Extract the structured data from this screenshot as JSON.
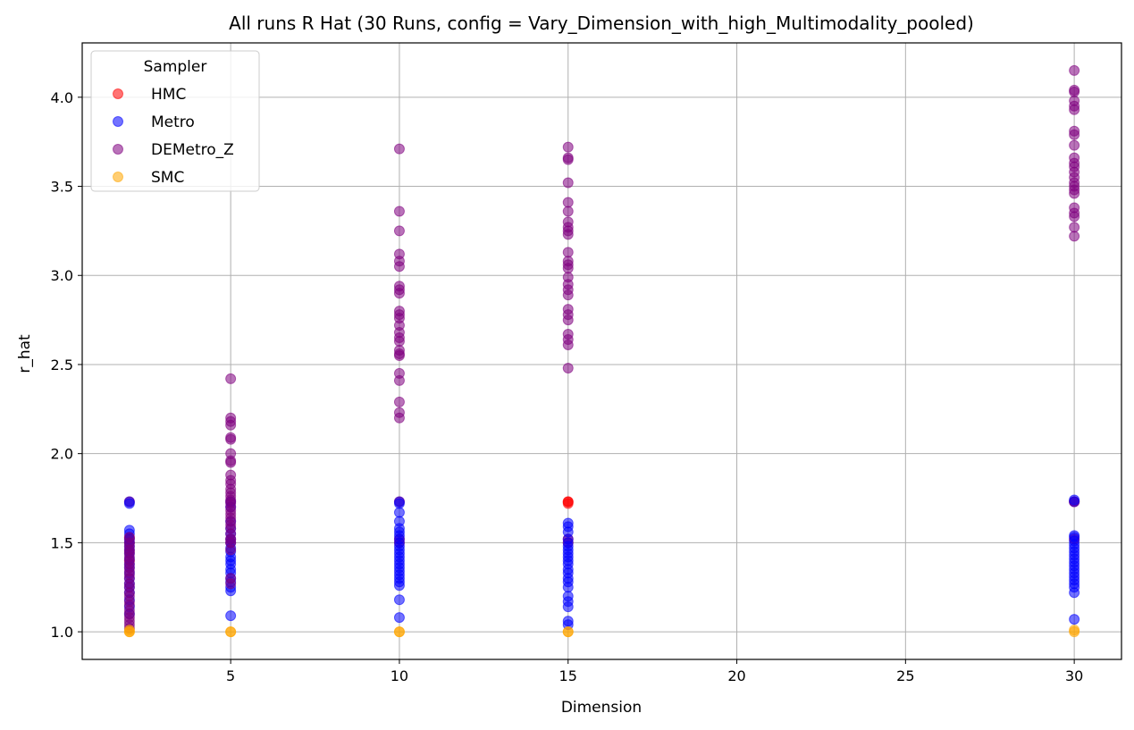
{
  "chart_data": {
    "type": "scatter",
    "title": "All runs R Hat (30 Runs, config = Vary_Dimension_with_high_Multimodality_pooled)",
    "xlabel": "Dimension",
    "ylabel": "r_hat",
    "xlim": [
      0.6,
      31.4
    ],
    "ylim": [
      0.845,
      4.305
    ],
    "xticks": [
      5,
      10,
      15,
      20,
      25,
      30
    ],
    "xtick_labels": [
      "5",
      "10",
      "15",
      "20",
      "25",
      "30"
    ],
    "yticks": [
      1.0,
      1.5,
      2.0,
      2.5,
      3.0,
      3.5,
      4.0
    ],
    "ytick_labels": [
      "1.0",
      "1.5",
      "2.0",
      "2.5",
      "3.0",
      "3.5",
      "4.0"
    ],
    "grid": true,
    "legend": {
      "title": "Sampler",
      "placement": "top-left"
    },
    "series": [
      {
        "name": "HMC",
        "color": "#ff0000",
        "points": [
          [
            2,
            1.73
          ],
          [
            2,
            1.53
          ],
          [
            2,
            1.52
          ],
          [
            2,
            1.5
          ],
          [
            2,
            1.45
          ],
          [
            2,
            1.4
          ],
          [
            5,
            1.73
          ],
          [
            5,
            1.52
          ],
          [
            5,
            1.5
          ],
          [
            10,
            1.73
          ],
          [
            10,
            1.52
          ],
          [
            10,
            1.5
          ],
          [
            15,
            1.73
          ],
          [
            15,
            1.73
          ],
          [
            15,
            1.72
          ],
          [
            15,
            1.52
          ],
          [
            15,
            1.5
          ],
          [
            30,
            1.73
          ],
          [
            30,
            1.73
          ],
          [
            30,
            1.52
          ]
        ]
      },
      {
        "name": "Metro",
        "color": "#0000ff",
        "points": [
          [
            2,
            1.72
          ],
          [
            2,
            1.73
          ],
          [
            2,
            1.57
          ],
          [
            2,
            1.55
          ],
          [
            2,
            1.52
          ],
          [
            2,
            1.5
          ],
          [
            2,
            1.48
          ],
          [
            2,
            1.46
          ],
          [
            2,
            1.44
          ],
          [
            2,
            1.41
          ],
          [
            2,
            1.38
          ],
          [
            2,
            1.36
          ],
          [
            2,
            1.33
          ],
          [
            2,
            1.3
          ],
          [
            2,
            1.27
          ],
          [
            2,
            1.25
          ],
          [
            2,
            1.22
          ],
          [
            2,
            1.18
          ],
          [
            2,
            1.14
          ],
          [
            2,
            1.1
          ],
          [
            5,
            1.73
          ],
          [
            5,
            1.7
          ],
          [
            5,
            1.62
          ],
          [
            5,
            1.58
          ],
          [
            5,
            1.55
          ],
          [
            5,
            1.52
          ],
          [
            5,
            1.5
          ],
          [
            5,
            1.47
          ],
          [
            5,
            1.45
          ],
          [
            5,
            1.42
          ],
          [
            5,
            1.4
          ],
          [
            5,
            1.38
          ],
          [
            5,
            1.35
          ],
          [
            5,
            1.33
          ],
          [
            5,
            1.3
          ],
          [
            5,
            1.28
          ],
          [
            5,
            1.25
          ],
          [
            5,
            1.23
          ],
          [
            5,
            1.09
          ],
          [
            10,
            1.73
          ],
          [
            10,
            1.72
          ],
          [
            10,
            1.67
          ],
          [
            10,
            1.62
          ],
          [
            10,
            1.58
          ],
          [
            10,
            1.56
          ],
          [
            10,
            1.54
          ],
          [
            10,
            1.52
          ],
          [
            10,
            1.5
          ],
          [
            10,
            1.48
          ],
          [
            10,
            1.46
          ],
          [
            10,
            1.44
          ],
          [
            10,
            1.42
          ],
          [
            10,
            1.4
          ],
          [
            10,
            1.38
          ],
          [
            10,
            1.36
          ],
          [
            10,
            1.34
          ],
          [
            10,
            1.32
          ],
          [
            10,
            1.3
          ],
          [
            10,
            1.28
          ],
          [
            10,
            1.26
          ],
          [
            10,
            1.18
          ],
          [
            10,
            1.08
          ],
          [
            15,
            1.61
          ],
          [
            15,
            1.59
          ],
          [
            15,
            1.56
          ],
          [
            15,
            1.52
          ],
          [
            15,
            1.5
          ],
          [
            15,
            1.48
          ],
          [
            15,
            1.46
          ],
          [
            15,
            1.44
          ],
          [
            15,
            1.42
          ],
          [
            15,
            1.4
          ],
          [
            15,
            1.38
          ],
          [
            15,
            1.35
          ],
          [
            15,
            1.33
          ],
          [
            15,
            1.3
          ],
          [
            15,
            1.28
          ],
          [
            15,
            1.25
          ],
          [
            15,
            1.2
          ],
          [
            15,
            1.17
          ],
          [
            15,
            1.14
          ],
          [
            15,
            1.06
          ],
          [
            15,
            1.04
          ],
          [
            30,
            1.74
          ],
          [
            30,
            1.73
          ],
          [
            30,
            1.54
          ],
          [
            30,
            1.53
          ],
          [
            30,
            1.51
          ],
          [
            30,
            1.49
          ],
          [
            30,
            1.47
          ],
          [
            30,
            1.45
          ],
          [
            30,
            1.43
          ],
          [
            30,
            1.41
          ],
          [
            30,
            1.39
          ],
          [
            30,
            1.37
          ],
          [
            30,
            1.35
          ],
          [
            30,
            1.33
          ],
          [
            30,
            1.31
          ],
          [
            30,
            1.29
          ],
          [
            30,
            1.27
          ],
          [
            30,
            1.25
          ],
          [
            30,
            1.22
          ],
          [
            30,
            1.07
          ]
        ]
      },
      {
        "name": "DEMetro_Z",
        "color": "#800080",
        "points": [
          [
            2,
            1.53
          ],
          [
            2,
            1.5
          ],
          [
            2,
            1.48
          ],
          [
            2,
            1.46
          ],
          [
            2,
            1.44
          ],
          [
            2,
            1.42
          ],
          [
            2,
            1.4
          ],
          [
            2,
            1.38
          ],
          [
            2,
            1.36
          ],
          [
            2,
            1.34
          ],
          [
            2,
            1.32
          ],
          [
            2,
            1.3
          ],
          [
            2,
            1.27
          ],
          [
            2,
            1.25
          ],
          [
            2,
            1.22
          ],
          [
            2,
            1.2
          ],
          [
            2,
            1.17
          ],
          [
            2,
            1.15
          ],
          [
            2,
            1.12
          ],
          [
            2,
            1.1
          ],
          [
            2,
            1.08
          ],
          [
            2,
            1.06
          ],
          [
            2,
            1.04
          ],
          [
            2,
            1.02
          ],
          [
            5,
            2.42
          ],
          [
            5,
            2.2
          ],
          [
            5,
            2.18
          ],
          [
            5,
            2.16
          ],
          [
            5,
            2.09
          ],
          [
            5,
            2.08
          ],
          [
            5,
            2.0
          ],
          [
            5,
            1.96
          ],
          [
            5,
            1.95
          ],
          [
            5,
            1.88
          ],
          [
            5,
            1.85
          ],
          [
            5,
            1.83
          ],
          [
            5,
            1.8
          ],
          [
            5,
            1.78
          ],
          [
            5,
            1.76
          ],
          [
            5,
            1.74
          ],
          [
            5,
            1.72
          ],
          [
            5,
            1.7
          ],
          [
            5,
            1.68
          ],
          [
            5,
            1.66
          ],
          [
            5,
            1.64
          ],
          [
            5,
            1.62
          ],
          [
            5,
            1.6
          ],
          [
            5,
            1.58
          ],
          [
            5,
            1.55
          ],
          [
            5,
            1.52
          ],
          [
            5,
            1.5
          ],
          [
            5,
            1.46
          ],
          [
            5,
            1.3
          ],
          [
            5,
            1.27
          ],
          [
            10,
            3.71
          ],
          [
            10,
            3.36
          ],
          [
            10,
            3.25
          ],
          [
            10,
            3.12
          ],
          [
            10,
            3.08
          ],
          [
            10,
            3.05
          ],
          [
            10,
            2.94
          ],
          [
            10,
            2.92
          ],
          [
            10,
            2.9
          ],
          [
            10,
            2.8
          ],
          [
            10,
            2.78
          ],
          [
            10,
            2.76
          ],
          [
            10,
            2.72
          ],
          [
            10,
            2.68
          ],
          [
            10,
            2.65
          ],
          [
            10,
            2.63
          ],
          [
            10,
            2.58
          ],
          [
            10,
            2.56
          ],
          [
            10,
            2.55
          ],
          [
            10,
            2.45
          ],
          [
            10,
            2.41
          ],
          [
            10,
            2.29
          ],
          [
            10,
            2.23
          ],
          [
            10,
            2.2
          ],
          [
            15,
            3.72
          ],
          [
            15,
            3.66
          ],
          [
            15,
            3.65
          ],
          [
            15,
            3.52
          ],
          [
            15,
            3.41
          ],
          [
            15,
            3.36
          ],
          [
            15,
            3.3
          ],
          [
            15,
            3.27
          ],
          [
            15,
            3.25
          ],
          [
            15,
            3.23
          ],
          [
            15,
            3.13
          ],
          [
            15,
            3.08
          ],
          [
            15,
            3.06
          ],
          [
            15,
            3.04
          ],
          [
            15,
            2.99
          ],
          [
            15,
            2.95
          ],
          [
            15,
            2.92
          ],
          [
            15,
            2.89
          ],
          [
            15,
            2.81
          ],
          [
            15,
            2.78
          ],
          [
            15,
            2.75
          ],
          [
            15,
            2.67
          ],
          [
            15,
            2.64
          ],
          [
            15,
            2.61
          ],
          [
            15,
            2.48
          ],
          [
            30,
            4.15
          ],
          [
            30,
            4.04
          ],
          [
            30,
            4.03
          ],
          [
            30,
            3.98
          ],
          [
            30,
            3.95
          ],
          [
            30,
            3.93
          ],
          [
            30,
            3.81
          ],
          [
            30,
            3.79
          ],
          [
            30,
            3.73
          ],
          [
            30,
            3.66
          ],
          [
            30,
            3.63
          ],
          [
            30,
            3.61
          ],
          [
            30,
            3.58
          ],
          [
            30,
            3.55
          ],
          [
            30,
            3.52
          ],
          [
            30,
            3.5
          ],
          [
            30,
            3.48
          ],
          [
            30,
            3.46
          ],
          [
            30,
            3.38
          ],
          [
            30,
            3.35
          ],
          [
            30,
            3.33
          ],
          [
            30,
            3.27
          ],
          [
            30,
            3.22
          ]
        ]
      },
      {
        "name": "SMC",
        "color": "#ffa500",
        "points": [
          [
            2,
            1.0
          ],
          [
            2,
            1.0
          ],
          [
            2,
            1.01
          ],
          [
            5,
            1.0
          ],
          [
            5,
            1.0
          ],
          [
            10,
            1.0
          ],
          [
            10,
            1.0
          ],
          [
            15,
            1.0
          ],
          [
            15,
            1.0
          ],
          [
            30,
            1.0
          ],
          [
            30,
            1.01
          ]
        ]
      }
    ]
  }
}
